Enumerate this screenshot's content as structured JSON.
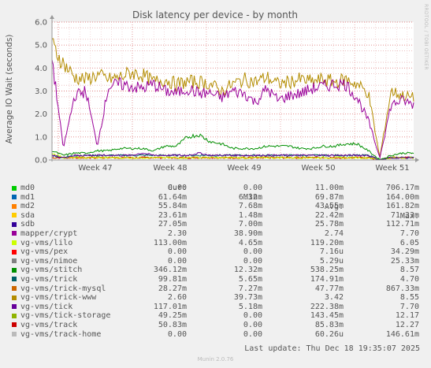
{
  "chart_data": {
    "type": "line",
    "title": "Disk latency per device - by month",
    "ylabel": "Average IO Wait (seconds)",
    "ylim": [
      0,
      6.0
    ],
    "yticks": [
      "0.0",
      "1.0",
      "2.0",
      "3.0",
      "4.0",
      "5.0",
      "6.0"
    ],
    "xticks": [
      "Week 47",
      "Week 48",
      "Week 49",
      "Week 50",
      "Week 51"
    ],
    "grid": true,
    "series": [
      {
        "name": "mapper/crypt",
        "color": "#990099",
        "values": [
          4.4,
          0.5,
          2.8,
          3.0,
          0.6,
          3.2,
          3.3,
          3.2,
          3.1,
          3.3,
          3.0,
          2.9,
          3.1,
          2.9,
          2.9,
          2.7,
          3.0,
          2.9,
          2.5,
          3.1,
          2.6,
          2.8,
          2.9,
          3.1,
          3.2,
          3.3,
          3.3,
          2.7,
          1.7,
          0.1,
          2.4,
          2.6,
          2.4
        ]
      },
      {
        "name": "vg-vms/trick-www",
        "color": "#b38c00",
        "values": [
          5.0,
          4.2,
          3.6,
          3.5,
          3.7,
          3.5,
          3.6,
          3.8,
          3.7,
          3.4,
          3.5,
          3.3,
          3.4,
          3.4,
          3.3,
          3.0,
          3.3,
          3.5,
          3.4,
          3.6,
          3.3,
          3.4,
          3.5,
          3.4,
          3.5,
          3.4,
          3.5,
          3.3,
          2.9,
          0.1,
          3.0,
          2.8,
          2.7
        ]
      },
      {
        "name": "vg-vms/stitch",
        "color": "#008f00",
        "values": [
          0.4,
          0.2,
          0.3,
          0.3,
          0.4,
          0.4,
          0.5,
          0.5,
          0.5,
          0.4,
          0.6,
          0.6,
          1.0,
          1.1,
          0.8,
          0.7,
          0.5,
          0.5,
          0.5,
          0.6,
          0.6,
          0.6,
          0.5,
          0.5,
          0.6,
          0.6,
          0.7,
          0.7,
          0.4,
          0.0,
          0.2,
          0.3,
          0.3
        ]
      },
      {
        "name": "vg-vms/tick",
        "color": "#660099",
        "values": [
          0.2,
          0.1,
          0.2,
          0.2,
          0.2,
          0.2,
          0.2,
          0.2,
          0.3,
          0.2,
          0.2,
          0.2,
          0.2,
          0.3,
          0.2,
          0.2,
          0.2,
          0.2,
          0.2,
          0.2,
          0.2,
          0.2,
          0.2,
          0.2,
          0.2,
          0.2,
          0.2,
          0.2,
          0.2,
          0.0,
          0.1,
          0.1,
          0.1
        ]
      },
      {
        "name": "vg-vms/lilo",
        "color": "#ccff00",
        "values": [
          0.3,
          0.1,
          0.1,
          0.1,
          0.1,
          0.1,
          0.1,
          0.1,
          0.1,
          0.1,
          0.1,
          0.1,
          0.1,
          0.1,
          0.1,
          0.1,
          0.1,
          0.1,
          0.1,
          0.1,
          0.1,
          0.1,
          0.1,
          0.1,
          0.1,
          0.1,
          0.1,
          0.1,
          0.1,
          0.0,
          0.1,
          0.1,
          0.1
        ]
      },
      {
        "name": "vg-vms/trick",
        "color": "#005f66",
        "values": [
          0.2,
          0.1,
          0.2,
          0.2,
          0.2,
          0.2,
          0.2,
          0.2,
          0.2,
          0.2,
          0.2,
          0.2,
          0.2,
          0.2,
          0.2,
          0.2,
          0.2,
          0.2,
          0.2,
          0.2,
          0.2,
          0.2,
          0.2,
          0.2,
          0.2,
          0.2,
          0.2,
          0.2,
          0.2,
          0.0,
          0.1,
          0.1,
          0.1
        ]
      },
      {
        "name": "vg-vms/trick-mysql",
        "color": "#cc6600",
        "values": [
          0.1,
          0.1,
          0.1,
          0.1,
          0.1,
          0.1,
          0.1,
          0.1,
          0.1,
          0.1,
          0.1,
          0.1,
          0.1,
          0.1,
          0.1,
          0.1,
          0.1,
          0.1,
          0.1,
          0.1,
          0.1,
          0.1,
          0.1,
          0.1,
          0.1,
          0.1,
          0.1,
          0.1,
          0.1,
          0.0,
          0.1,
          0.1,
          0.1
        ]
      },
      {
        "name": "vg-vms/track",
        "color": "#cc0000",
        "values": [
          0.1,
          0.1,
          0.1,
          0.1,
          0.1,
          0.1,
          0.1,
          0.1,
          0.1,
          0.1,
          0.1,
          0.1,
          0.1,
          0.1,
          0.1,
          0.1,
          0.1,
          0.1,
          0.1,
          0.1,
          0.1,
          0.1,
          0.1,
          0.1,
          0.1,
          0.1,
          0.1,
          0.1,
          0.1,
          0.0,
          0.1,
          0.1,
          0.1
        ]
      }
    ]
  },
  "legend": {
    "headers": {
      "cur": "Cur:",
      "min": "Min:",
      "avg": "Avg:",
      "max": "Max:"
    },
    "rows": [
      {
        "name": "md0",
        "color": "#00cc00",
        "cur": "0.00",
        "min": "0.00",
        "avg": "11.00m",
        "max": "706.17m"
      },
      {
        "name": "md1",
        "color": "#0066b3",
        "cur": "61.64m",
        "min": "6.32m",
        "avg": "69.87m",
        "max": "164.00m"
      },
      {
        "name": "md2",
        "color": "#ff8000",
        "cur": "55.84m",
        "min": "7.68m",
        "avg": "43.55m",
        "max": "161.82m"
      },
      {
        "name": "sda",
        "color": "#ffcc00",
        "cur": "23.61m",
        "min": "1.48m",
        "avg": "22.42m",
        "max": "71.33m"
      },
      {
        "name": "sdb",
        "color": "#330099",
        "cur": "27.05m",
        "min": "7.00m",
        "avg": "25.78m",
        "max": "112.71m"
      },
      {
        "name": "mapper/crypt",
        "color": "#990099",
        "cur": "2.30",
        "min": "38.90m",
        "avg": "2.74",
        "max": "7.70"
      },
      {
        "name": "vg-vms/lilo",
        "color": "#ccff00",
        "cur": "113.00m",
        "min": "4.65m",
        "avg": "119.20m",
        "max": "6.05"
      },
      {
        "name": "vg-vms/pex",
        "color": "#ff0000",
        "cur": "0.00",
        "min": "0.00",
        "avg": "7.16u",
        "max": "34.29m"
      },
      {
        "name": "vg-vms/nimoe",
        "color": "#808080",
        "cur": "0.00",
        "min": "0.00",
        "avg": "5.29u",
        "max": "25.33m"
      },
      {
        "name": "vg-vms/stitch",
        "color": "#008f00",
        "cur": "346.12m",
        "min": "12.32m",
        "avg": "538.25m",
        "max": "8.57"
      },
      {
        "name": "vg-vms/trick",
        "color": "#005f66",
        "cur": "99.81m",
        "min": "5.65m",
        "avg": "174.91m",
        "max": "4.70"
      },
      {
        "name": "vg-vms/trick-mysql",
        "color": "#cc6600",
        "cur": "28.27m",
        "min": "7.27m",
        "avg": "47.77m",
        "max": "867.33m"
      },
      {
        "name": "vg-vms/trick-www",
        "color": "#b38c00",
        "cur": "2.60",
        "min": "39.73m",
        "avg": "3.42",
        "max": "8.55"
      },
      {
        "name": "vg-vms/tick",
        "color": "#660099",
        "cur": "117.01m",
        "min": "5.18m",
        "avg": "222.38m",
        "max": "7.70"
      },
      {
        "name": "vg-vms/tick-storage",
        "color": "#8fb300",
        "cur": "49.25m",
        "min": "0.00",
        "avg": "143.45m",
        "max": "12.17"
      },
      {
        "name": "vg-vms/track",
        "color": "#cc0000",
        "cur": "50.83m",
        "min": "0.00",
        "avg": "85.83m",
        "max": "12.27"
      },
      {
        "name": "vg-vms/track-home",
        "color": "#bbbbbb",
        "cur": "0.00",
        "min": "0.00",
        "avg": "60.26u",
        "max": "146.61m"
      }
    ]
  },
  "footer": {
    "last_update": "Last update: Thu Dec 18 19:35:07 2025",
    "generator": "Munin 2.0.76",
    "side_label": "RRDTOOL / TOBI OETIKER"
  }
}
